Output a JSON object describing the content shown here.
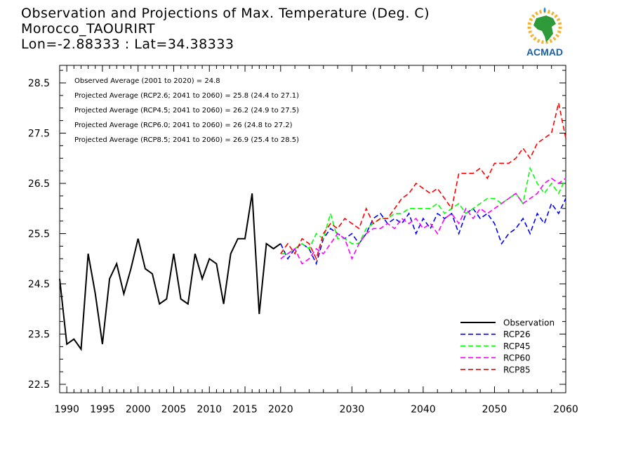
{
  "header": {
    "title": "Observation and Projections of Max. Temperature (Deg. C)",
    "location": "Morocco_TAOURIRT",
    "coords": "Lon=-2.88333 : Lat=34.38333"
  },
  "logo": {
    "text": "ACMAD",
    "color": "#1b5fa8",
    "icon": "africa-continent-icon"
  },
  "chart_data": {
    "type": "line",
    "title": "Observation and Projections of Max. Temperature (Deg. C)",
    "xlim": [
      1989,
      2060
    ],
    "ylim": [
      22.5,
      28.5
    ],
    "x_ticks": [
      1990,
      1995,
      2000,
      2005,
      2010,
      2015,
      2020,
      2030,
      2040,
      2050,
      2060
    ],
    "y_ticks": [
      22.5,
      23.5,
      24.5,
      25.5,
      26.5,
      27.5,
      28.5
    ],
    "annotations": [
      "Observed Average (2001 to 2020) = 24.8",
      "Projected Average (RCP2.6; 2041 to 2060) = 25.8 (24.4 to 27.1)",
      "Projected Average (RCP4.5; 2041 to 2060) = 26.2 (24.9 to 27.5)",
      "Projected Average (RCP6.0; 2041 to 2060) = 26 (24.8 to 27.2)",
      "Projected Average (RCP8.5; 2041 to 2060) = 26.9 (25.4 to 28.5)"
    ],
    "legend": {
      "position": "bottom-right"
    },
    "series": [
      {
        "name": "Observation",
        "color": "#000000",
        "dash": "solid",
        "x": [
          1989,
          1990,
          1991,
          1992,
          1993,
          1994,
          1995,
          1996,
          1997,
          1998,
          1999,
          2000,
          2001,
          2002,
          2003,
          2004,
          2005,
          2006,
          2007,
          2008,
          2009,
          2010,
          2011,
          2012,
          2013,
          2014,
          2015,
          2016,
          2017,
          2018,
          2019,
          2020
        ],
        "y": [
          24.6,
          23.3,
          23.4,
          23.2,
          25.1,
          24.3,
          23.3,
          24.6,
          24.9,
          24.3,
          24.8,
          25.4,
          24.8,
          24.7,
          24.1,
          24.2,
          25.1,
          24.2,
          24.1,
          25.1,
          24.6,
          25.0,
          24.9,
          24.1,
          25.1,
          25.4,
          25.4,
          26.3,
          23.9,
          25.3,
          25.2,
          25.3
        ]
      },
      {
        "name": "RCP26",
        "color": "#0000ff",
        "dash": "dashed",
        "x": [
          2020,
          2021,
          2022,
          2023,
          2024,
          2025,
          2026,
          2027,
          2028,
          2029,
          2030,
          2031,
          2032,
          2033,
          2034,
          2035,
          2036,
          2037,
          2038,
          2039,
          2040,
          2041,
          2042,
          2043,
          2044,
          2045,
          2046,
          2047,
          2048,
          2049,
          2050,
          2051,
          2052,
          2053,
          2054,
          2055,
          2056,
          2057,
          2058,
          2059,
          2060
        ],
        "y": [
          25.3,
          25.0,
          25.2,
          25.3,
          25.2,
          24.9,
          25.4,
          25.6,
          25.5,
          25.4,
          25.5,
          25.3,
          25.5,
          25.8,
          25.9,
          25.7,
          25.8,
          25.7,
          25.9,
          25.5,
          25.8,
          25.6,
          25.9,
          25.8,
          25.9,
          25.5,
          25.9,
          26.0,
          25.8,
          25.9,
          25.7,
          25.3,
          25.5,
          25.6,
          25.8,
          25.5,
          25.9,
          25.7,
          26.1,
          25.9,
          26.2
        ]
      },
      {
        "name": "RCP45",
        "color": "#00ff00",
        "dash": "dashed",
        "x": [
          2020,
          2021,
          2022,
          2023,
          2024,
          2025,
          2026,
          2027,
          2028,
          2029,
          2030,
          2031,
          2032,
          2033,
          2034,
          2035,
          2036,
          2037,
          2038,
          2039,
          2040,
          2041,
          2042,
          2043,
          2044,
          2045,
          2046,
          2047,
          2048,
          2049,
          2050,
          2051,
          2052,
          2053,
          2054,
          2055,
          2056,
          2057,
          2058,
          2059,
          2060
        ],
        "y": [
          25.1,
          25.1,
          25.2,
          25.3,
          25.2,
          25.5,
          25.4,
          25.9,
          25.4,
          25.4,
          25.3,
          25.3,
          25.6,
          25.7,
          25.8,
          25.8,
          25.9,
          25.9,
          26.0,
          26.0,
          26.0,
          26.0,
          26.1,
          25.9,
          26.0,
          26.1,
          25.9,
          26.0,
          26.1,
          26.2,
          26.2,
          26.1,
          26.2,
          26.3,
          26.1,
          26.8,
          26.5,
          26.3,
          26.5,
          26.3,
          26.6
        ]
      },
      {
        "name": "RCP60",
        "color": "#ff00ff",
        "dash": "dashed",
        "x": [
          2020,
          2021,
          2022,
          2023,
          2024,
          2025,
          2026,
          2027,
          2028,
          2029,
          2030,
          2031,
          2032,
          2033,
          2034,
          2035,
          2036,
          2037,
          2038,
          2039,
          2040,
          2041,
          2042,
          2043,
          2044,
          2045,
          2046,
          2047,
          2048,
          2049,
          2050,
          2051,
          2052,
          2053,
          2054,
          2055,
          2056,
          2057,
          2058,
          2059,
          2060
        ],
        "y": [
          25.0,
          25.1,
          25.2,
          24.9,
          25.0,
          25.2,
          25.1,
          25.3,
          25.5,
          25.4,
          25.0,
          25.3,
          25.5,
          25.6,
          25.6,
          25.7,
          25.6,
          25.8,
          25.7,
          25.8,
          25.6,
          25.7,
          25.5,
          25.8,
          25.9,
          25.7,
          26.0,
          25.8,
          26.0,
          25.9,
          26.0,
          26.1,
          26.2,
          26.3,
          26.1,
          26.2,
          26.3,
          26.5,
          26.6,
          26.5,
          26.6
        ]
      },
      {
        "name": "RCP85",
        "color": "#ff0000",
        "dash": "dashed",
        "x": [
          2020,
          2021,
          2022,
          2023,
          2024,
          2025,
          2026,
          2027,
          2028,
          2029,
          2030,
          2031,
          2032,
          2033,
          2034,
          2035,
          2036,
          2037,
          2038,
          2039,
          2040,
          2041,
          2042,
          2043,
          2044,
          2045,
          2046,
          2047,
          2048,
          2049,
          2050,
          2051,
          2052,
          2053,
          2054,
          2055,
          2056,
          2057,
          2058,
          2059,
          2060
        ],
        "y": [
          25.1,
          25.3,
          25.1,
          25.4,
          25.3,
          25.0,
          25.5,
          25.7,
          25.6,
          25.8,
          25.7,
          25.6,
          26.0,
          25.7,
          25.8,
          25.8,
          26.0,
          26.2,
          26.3,
          26.5,
          26.4,
          26.3,
          26.4,
          26.2,
          26.0,
          26.7,
          26.7,
          26.7,
          26.8,
          26.6,
          26.9,
          26.9,
          26.9,
          27.0,
          27.2,
          27.0,
          27.3,
          27.4,
          27.5,
          28.1,
          27.4
        ]
      }
    ]
  }
}
